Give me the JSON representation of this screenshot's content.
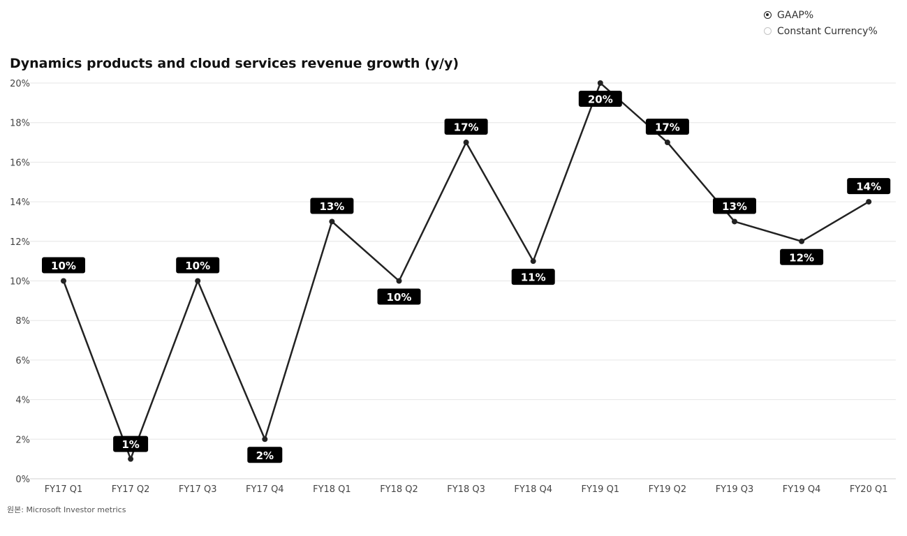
{
  "legend": {
    "items": [
      {
        "label": "GAAP%",
        "selected": true
      },
      {
        "label": "Constant Currency%",
        "selected": false
      }
    ]
  },
  "title": "Dynamics products and cloud services revenue growth (y/y)",
  "source": "원본: Microsoft Investor metrics",
  "colors": {
    "line": "#222222",
    "label_bg": "#000000",
    "label_text": "#ffffff",
    "grid": "#e6e6e6"
  },
  "chart_data": {
    "type": "line",
    "title": "Dynamics products and cloud services revenue growth (y/y)",
    "xlabel": "",
    "ylabel": "",
    "categories": [
      "FY17 Q1",
      "FY17 Q2",
      "FY17 Q3",
      "FY17 Q4",
      "FY18 Q1",
      "FY18 Q2",
      "FY18 Q3",
      "FY18 Q4",
      "FY19 Q1",
      "FY19 Q2",
      "FY19 Q3",
      "FY19 Q4",
      "FY20 Q1"
    ],
    "series": [
      {
        "name": "GAAP%",
        "values": [
          10,
          1,
          10,
          2,
          13,
          10,
          17,
          11,
          20,
          17,
          13,
          12,
          14
        ],
        "labels": [
          "10%",
          "1%",
          "10%",
          "2%",
          "13%",
          "10%",
          "17%",
          "11%",
          "20%",
          "17%",
          "13%",
          "12%",
          "14%"
        ]
      }
    ],
    "ylim": [
      0,
      20
    ],
    "yticks": [
      0,
      2,
      4,
      6,
      8,
      10,
      12,
      14,
      16,
      18,
      20
    ],
    "ytick_labels": [
      "0%",
      "2%",
      "4%",
      "6%",
      "8%",
      "10%",
      "12%",
      "14%",
      "16%",
      "18%",
      "20%"
    ],
    "grid": true,
    "legend_position": "top-right"
  }
}
